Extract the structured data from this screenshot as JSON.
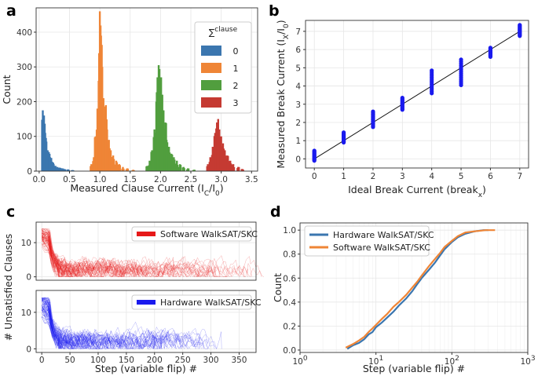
{
  "chart_data": [
    {
      "panel": "a",
      "type": "bar",
      "xlabel_main": "Measured Clause Current (I",
      "xlabel_sub": "C",
      "xlabel_mid": "/I",
      "xlabel_sub2": "0",
      "xlabel_end": ")",
      "ylabel": "Count",
      "xlim": [
        -0.05,
        3.6
      ],
      "ylim": [
        0,
        470
      ],
      "xticks": [
        "0.0",
        "0.5",
        "1.0",
        "1.5",
        "2.0",
        "2.5",
        "3.0",
        "3.5"
      ],
      "yticks": [
        "0",
        "100",
        "200",
        "300",
        "400"
      ],
      "legend_title": "∑clause",
      "legend_title_sym": "∑",
      "legend_title_sup": "clause",
      "series": [
        {
          "name": "0",
          "color": "#3b76af",
          "peak": 0.08,
          "max": 175,
          "bins": [
            [
              0.06,
              175
            ],
            [
              0.08,
              160
            ],
            [
              0.1,
              110
            ],
            [
              0.12,
              85
            ],
            [
              0.14,
              60
            ],
            [
              0.16,
              55
            ],
            [
              0.18,
              40
            ],
            [
              0.2,
              38
            ],
            [
              0.22,
              25
            ],
            [
              0.24,
              20
            ],
            [
              0.27,
              15
            ],
            [
              0.3,
              12
            ],
            [
              0.34,
              10
            ],
            [
              0.38,
              8
            ],
            [
              0.42,
              6
            ],
            [
              0.48,
              5
            ],
            [
              0.55,
              3
            ]
          ]
        },
        {
          "name": "1",
          "color": "#ef8536",
          "peak": 1.0,
          "max": 460,
          "bins": [
            [
              0.86,
              20
            ],
            [
              0.9,
              40
            ],
            [
              0.93,
              100
            ],
            [
              0.96,
              180
            ],
            [
              0.98,
              260
            ],
            [
              1.0,
              460
            ],
            [
              1.02,
              390
            ],
            [
              1.04,
              300
            ],
            [
              1.06,
              210
            ],
            [
              1.08,
              150
            ],
            [
              1.1,
              190
            ],
            [
              1.12,
              120
            ],
            [
              1.15,
              90
            ],
            [
              1.18,
              60
            ],
            [
              1.22,
              45
            ],
            [
              1.27,
              30
            ],
            [
              1.32,
              20
            ],
            [
              1.38,
              12
            ],
            [
              1.45,
              8
            ],
            [
              1.55,
              4
            ]
          ]
        },
        {
          "name": "2",
          "color": "#519e3e",
          "peak": 1.97,
          "max": 305,
          "bins": [
            [
              1.78,
              15
            ],
            [
              1.82,
              30
            ],
            [
              1.86,
              60
            ],
            [
              1.9,
              120
            ],
            [
              1.93,
              200
            ],
            [
              1.95,
              270
            ],
            [
              1.97,
              305
            ],
            [
              1.99,
              250
            ],
            [
              2.01,
              270
            ],
            [
              2.03,
              220
            ],
            [
              2.05,
              175
            ],
            [
              2.08,
              140
            ],
            [
              2.1,
              90
            ],
            [
              2.14,
              70
            ],
            [
              2.18,
              50
            ],
            [
              2.22,
              40
            ],
            [
              2.27,
              30
            ],
            [
              2.32,
              20
            ],
            [
              2.38,
              12
            ],
            [
              2.45,
              8
            ],
            [
              2.55,
              4
            ]
          ]
        },
        {
          "name": "3",
          "color": "#c53a32",
          "peak": 2.95,
          "max": 150,
          "bins": [
            [
              2.78,
              20
            ],
            [
              2.82,
              40
            ],
            [
              2.86,
              70
            ],
            [
              2.9,
              110
            ],
            [
              2.93,
              140
            ],
            [
              2.95,
              150
            ],
            [
              2.97,
              120
            ],
            [
              3.0,
              100
            ],
            [
              3.03,
              80
            ],
            [
              3.06,
              60
            ],
            [
              3.1,
              45
            ],
            [
              3.15,
              30
            ],
            [
              3.2,
              20
            ],
            [
              3.28,
              12
            ],
            [
              3.35,
              6
            ]
          ]
        }
      ]
    },
    {
      "panel": "b",
      "type": "scatter",
      "xlabel": "Ideal Break Current (break",
      "xlabel_sub": "x",
      "xlabel_end": ")",
      "ylabel": "Measured Break Current (I",
      "ylabel_sub": "X",
      "ylabel_mid": "/I",
      "ylabel_sub2": "0",
      "ylabel_end": ")",
      "xlim": [
        -0.3,
        7.3
      ],
      "ylim": [
        -0.5,
        7.6
      ],
      "xticks": [
        "0",
        "1",
        "2",
        "3",
        "4",
        "5",
        "6",
        "7"
      ],
      "yticks": [
        "0",
        "1",
        "2",
        "3",
        "4",
        "5",
        "6",
        "7"
      ],
      "color": "#1a1aee",
      "fit_line": [
        [
          0,
          0
        ],
        [
          7,
          7
        ]
      ],
      "columns": [
        {
          "x": 0,
          "ymin": -0.1,
          "ymax": 0.45
        },
        {
          "x": 1,
          "ymin": 0.9,
          "ymax": 1.45
        },
        {
          "x": 2,
          "ymin": 1.75,
          "ymax": 2.6
        },
        {
          "x": 3,
          "ymin": 2.7,
          "ymax": 3.35
        },
        {
          "x": 4,
          "ymin": 3.6,
          "ymax": 4.85
        },
        {
          "x": 5,
          "ymin": 4.05,
          "ymax": 5.45
        },
        {
          "x": 6,
          "ymin": 5.6,
          "ymax": 6.1
        },
        {
          "x": 7,
          "ymin": 6.75,
          "ymax": 7.35
        }
      ]
    },
    {
      "panel": "c",
      "type": "line",
      "xlabel": "Step (variable flip) #",
      "ylabel": "# Unsatisfied Clauses",
      "xlim": [
        -10,
        380
      ],
      "ylim": [
        -1,
        16
      ],
      "xticks": [
        "0",
        "50",
        "100",
        "150",
        "200",
        "250",
        "300",
        "350"
      ],
      "yticks": [
        "0",
        "10"
      ],
      "series": [
        {
          "name": "Software WalkSAT/SKC",
          "color": "#e61919",
          "max_step": 370
        },
        {
          "name": "Hardware WalkSAT/SKC",
          "color": "#1a1aee",
          "max_step": 300
        }
      ]
    },
    {
      "panel": "d",
      "type": "line",
      "xlabel": "Step (variable flip) #",
      "ylabel": "Count",
      "xscale": "log",
      "xlim_exp": [
        0,
        3
      ],
      "ylim": [
        -0.02,
        1.06
      ],
      "xticks": [
        {
          "base": "10",
          "exp": "0"
        },
        {
          "base": "10",
          "exp": "1"
        },
        {
          "base": "10",
          "exp": "2"
        },
        {
          "base": "10",
          "exp": "3"
        }
      ],
      "yticks": [
        "0.0",
        "0.2",
        "0.4",
        "0.6",
        "0.8",
        "1.0"
      ],
      "series": [
        {
          "name": "Hardware WalkSAT/SKC",
          "color": "#3b76af",
          "points": [
            [
              4.2,
              0.01
            ],
            [
              5,
              0.04
            ],
            [
              6,
              0.06
            ],
            [
              7,
              0.09
            ],
            [
              8,
              0.13
            ],
            [
              9,
              0.15
            ],
            [
              10,
              0.19
            ],
            [
              12,
              0.23
            ],
            [
              14,
              0.27
            ],
            [
              17,
              0.32
            ],
            [
              20,
              0.37
            ],
            [
              25,
              0.43
            ],
            [
              30,
              0.49
            ],
            [
              35,
              0.55
            ],
            [
              40,
              0.6
            ],
            [
              50,
              0.67
            ],
            [
              60,
              0.73
            ],
            [
              70,
              0.79
            ],
            [
              80,
              0.84
            ],
            [
              100,
              0.9
            ],
            [
              120,
              0.94
            ],
            [
              150,
              0.97
            ],
            [
              200,
              0.99
            ],
            [
              260,
              1.0
            ],
            [
              300,
              1.0
            ]
          ]
        },
        {
          "name": "Software WalkSAT/SKC",
          "color": "#ef8536",
          "points": [
            [
              4,
              0.02
            ],
            [
              5,
              0.05
            ],
            [
              6,
              0.08
            ],
            [
              7,
              0.11
            ],
            [
              8,
              0.15
            ],
            [
              9,
              0.18
            ],
            [
              10,
              0.21
            ],
            [
              12,
              0.26
            ],
            [
              14,
              0.3
            ],
            [
              17,
              0.36
            ],
            [
              20,
              0.4
            ],
            [
              25,
              0.46
            ],
            [
              30,
              0.52
            ],
            [
              35,
              0.57
            ],
            [
              40,
              0.62
            ],
            [
              50,
              0.7
            ],
            [
              60,
              0.76
            ],
            [
              70,
              0.81
            ],
            [
              80,
              0.86
            ],
            [
              100,
              0.91
            ],
            [
              120,
              0.95
            ],
            [
              150,
              0.98
            ],
            [
              200,
              0.99
            ],
            [
              280,
              1.0
            ],
            [
              370,
              1.0
            ]
          ]
        }
      ]
    }
  ],
  "panel_labels": {
    "a": "a",
    "b": "b",
    "c": "c",
    "d": "d"
  }
}
